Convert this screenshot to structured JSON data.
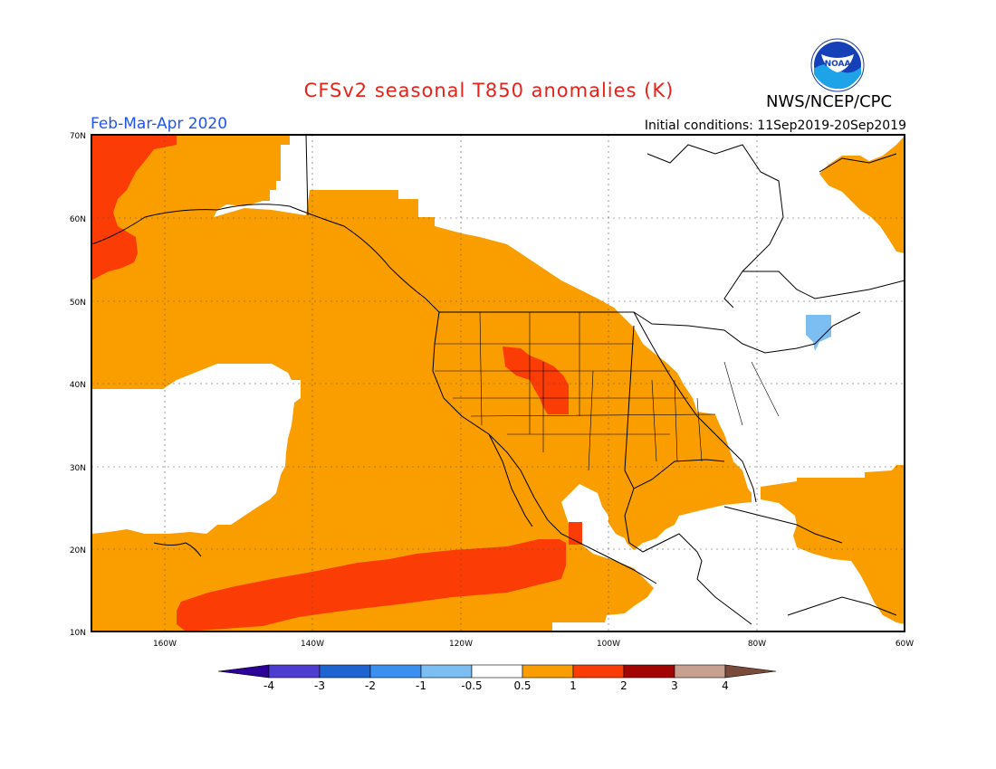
{
  "title": "CFSv2 seasonal T850 anomalies (K)",
  "organization": "NWS/NCEP/CPC",
  "logo_text": "NOAA",
  "valid_period": "Feb-Mar-Apr 2020",
  "initial_conditions": "Initial conditions: 11Sep2019-20Sep2019",
  "lat_labels": [
    "70N",
    "60N",
    "50N",
    "40N",
    "30N",
    "20N",
    "10N"
  ],
  "lon_labels": [
    "160W",
    "140W",
    "120W",
    "100W",
    "80W",
    "60W"
  ],
  "colorbar": {
    "labels": [
      "-4",
      "-3",
      "-2",
      "-1",
      "-0.5",
      "0.5",
      "1",
      "2",
      "3",
      "4"
    ],
    "colors": [
      "#2a0099",
      "#4c3ccf",
      "#1d64d2",
      "#3b8ff0",
      "#7cbdf2",
      "#ffffff",
      "#fa9e00",
      "#fc3c05",
      "#a30505",
      "#c7a08f",
      "#7a4a3a"
    ]
  },
  "colors": {
    "orange": "#fa9e00",
    "red": "#fc3c05",
    "light_blue": "#7cbdf2",
    "title_red": "#e8221a",
    "period_blue": "#2255ee"
  }
}
